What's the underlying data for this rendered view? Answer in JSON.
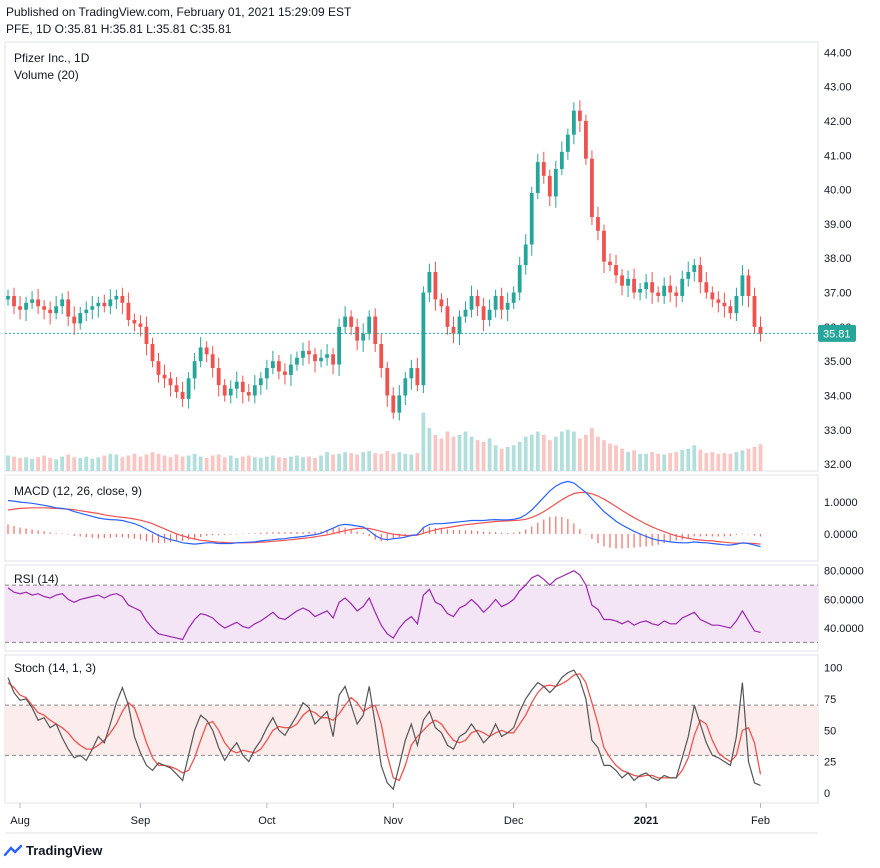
{
  "header": {
    "published": "Published on TradingView.com, February 01, 2021 15:29:09 EST",
    "ohlc": "PFE, 1D O:35.81 H:35.81 L:35.81 C:35.81"
  },
  "footer": {
    "brand": "TradingView"
  },
  "colors": {
    "up": "#26a69a",
    "down": "#ef5350",
    "up_vol": "#b2dfdb",
    "down_vol": "#f8c6c3",
    "macd": "#2962ff",
    "signal": "#ef5350",
    "rsi": "#9c27b0",
    "stoch_k": "#555555",
    "stoch_d": "#ef5350",
    "price_line": "#26a69a"
  },
  "chart_data": {
    "type": "candlestick",
    "title": "Pfizer Inc., 1D",
    "last_price_label": "35.81",
    "x_axis": {
      "tick_labels": [
        "Aug",
        "Sep",
        "Oct",
        "Nov",
        "Dec",
        "2021",
        "Feb"
      ],
      "tick_index": [
        2,
        22,
        43,
        64,
        84,
        106,
        125
      ]
    },
    "price_panel": {
      "legend": [
        "Pfizer Inc., 1D",
        "Volume (20)"
      ],
      "ylim": [
        31.8,
        44.3
      ],
      "ticks": [
        "32.00",
        "33.00",
        "34.00",
        "35.00",
        "36.00",
        "37.00",
        "38.00",
        "39.00",
        "40.00",
        "41.00",
        "42.00",
        "43.00",
        "44.00"
      ],
      "close": [
        36.9,
        36.6,
        36.5,
        36.7,
        36.8,
        36.6,
        36.5,
        36.4,
        36.6,
        36.8,
        36.3,
        36.1,
        36.4,
        36.5,
        36.6,
        36.7,
        36.6,
        36.8,
        36.9,
        36.7,
        36.2,
        36.1,
        36.0,
        35.5,
        35.0,
        34.6,
        34.5,
        34.3,
        34.1,
        33.9,
        34.5,
        35.0,
        35.4,
        35.2,
        34.8,
        34.3,
        34.0,
        34.2,
        34.4,
        34.1,
        34.0,
        34.3,
        34.5,
        34.8,
        35.0,
        34.7,
        34.6,
        34.9,
        35.1,
        35.3,
        35.2,
        35.0,
        35.1,
        35.2,
        34.9,
        36.0,
        36.3,
        36.0,
        35.6,
        35.8,
        36.3,
        35.5,
        34.8,
        34.0,
        33.5,
        34.0,
        34.5,
        34.8,
        34.3,
        37.0,
        37.6,
        36.8,
        36.6,
        36.0,
        35.8,
        36.3,
        36.5,
        36.9,
        36.6,
        36.2,
        36.5,
        36.9,
        36.5,
        36.7,
        37.0,
        37.8,
        38.4,
        39.9,
        40.8,
        40.4,
        39.8,
        40.6,
        41.1,
        41.6,
        42.3,
        42.0,
        40.9,
        39.2,
        38.8,
        37.9,
        37.8,
        37.5,
        37.2,
        37.4,
        37.0,
        37.1,
        37.3,
        37.0,
        36.9,
        37.2,
        37.0,
        36.9,
        37.4,
        37.6,
        37.8,
        37.3,
        37.0,
        36.8,
        36.7,
        36.6,
        36.4,
        36.9,
        37.5,
        36.9,
        36.0,
        35.8
      ],
      "volume": [
        32.25,
        32.22,
        32.18,
        32.2,
        32.15,
        32.2,
        32.25,
        32.18,
        32.14,
        32.22,
        32.28,
        32.2,
        32.18,
        32.22,
        32.15,
        32.2,
        32.25,
        32.3,
        32.28,
        32.2,
        32.25,
        32.3,
        32.22,
        32.28,
        32.35,
        32.3,
        32.25,
        32.2,
        32.28,
        32.22,
        32.25,
        32.3,
        32.22,
        32.18,
        32.25,
        32.28,
        32.2,
        32.25,
        32.18,
        32.22,
        32.25,
        32.2,
        32.18,
        32.22,
        32.25,
        32.2,
        32.18,
        32.22,
        32.25,
        32.2,
        32.22,
        32.18,
        32.25,
        32.35,
        32.28,
        32.3,
        32.35,
        32.32,
        32.28,
        32.35,
        32.38,
        32.32,
        32.3,
        32.38,
        32.3,
        32.35,
        32.3,
        32.28,
        32.32,
        33.5,
        33.05,
        32.85,
        32.75,
        32.95,
        32.8,
        32.85,
        32.95,
        32.8,
        32.7,
        32.65,
        32.75,
        32.55,
        32.45,
        32.5,
        32.55,
        32.65,
        32.8,
        32.85,
        32.95,
        32.85,
        32.7,
        32.8,
        32.95,
        33.0,
        32.95,
        32.75,
        32.85,
        33.05,
        32.8,
        32.7,
        32.6,
        32.55,
        32.45,
        32.35,
        32.4,
        32.3,
        32.3,
        32.35,
        32.3,
        32.28,
        32.32,
        32.35,
        32.42,
        32.45,
        32.55,
        32.42,
        32.32,
        32.35,
        32.3,
        32.32,
        32.3,
        32.35,
        32.4,
        32.45,
        32.5,
        32.58
      ]
    },
    "macd_panel": {
      "legend": "MACD (12, 26, close, 9)",
      "ylim": [
        -0.85,
        1.85
      ],
      "ticks": [
        "0.0000",
        "1.0000"
      ],
      "macd": [
        1.05,
        1.03,
        1.0,
        0.98,
        0.96,
        0.93,
        0.9,
        0.86,
        0.82,
        0.8,
        0.77,
        0.7,
        0.65,
        0.6,
        0.55,
        0.5,
        0.47,
        0.45,
        0.44,
        0.42,
        0.37,
        0.32,
        0.25,
        0.15,
        0.05,
        -0.05,
        -0.12,
        -0.18,
        -0.22,
        -0.28,
        -0.3,
        -0.32,
        -0.3,
        -0.28,
        -0.28,
        -0.3,
        -0.3,
        -0.3,
        -0.28,
        -0.27,
        -0.26,
        -0.25,
        -0.22,
        -0.2,
        -0.18,
        -0.16,
        -0.15,
        -0.12,
        -0.1,
        -0.08,
        -0.05,
        -0.02,
        0.02,
        0.1,
        0.18,
        0.27,
        0.3,
        0.28,
        0.25,
        0.22,
        0.1,
        -0.05,
        -0.15,
        -0.18,
        -0.15,
        -0.13,
        -0.1,
        -0.05,
        -0.02,
        0.2,
        0.3,
        0.32,
        0.32,
        0.34,
        0.36,
        0.38,
        0.4,
        0.42,
        0.42,
        0.42,
        0.44,
        0.45,
        0.44,
        0.44,
        0.46,
        0.5,
        0.6,
        0.75,
        0.95,
        1.15,
        1.35,
        1.5,
        1.6,
        1.65,
        1.6,
        1.45,
        1.3,
        1.1,
        0.9,
        0.7,
        0.55,
        0.4,
        0.28,
        0.18,
        0.08,
        0.0,
        -0.08,
        -0.15,
        -0.2,
        -0.22,
        -0.25,
        -0.27,
        -0.28,
        -0.28,
        -0.25,
        -0.27,
        -0.28,
        -0.3,
        -0.32,
        -0.34,
        -0.35,
        -0.32,
        -0.28,
        -0.3,
        -0.35,
        -0.4
      ],
      "signal": [
        0.75,
        0.78,
        0.8,
        0.81,
        0.82,
        0.82,
        0.82,
        0.81,
        0.8,
        0.79,
        0.78,
        0.76,
        0.73,
        0.7,
        0.67,
        0.64,
        0.6,
        0.57,
        0.54,
        0.52,
        0.5,
        0.47,
        0.43,
        0.38,
        0.32,
        0.24,
        0.16,
        0.08,
        0.0,
        -0.06,
        -0.12,
        -0.16,
        -0.2,
        -0.22,
        -0.24,
        -0.26,
        -0.27,
        -0.28,
        -0.28,
        -0.28,
        -0.28,
        -0.27,
        -0.26,
        -0.25,
        -0.23,
        -0.22,
        -0.2,
        -0.18,
        -0.16,
        -0.14,
        -0.12,
        -0.09,
        -0.06,
        -0.03,
        0.01,
        0.06,
        0.1,
        0.14,
        0.17,
        0.18,
        0.17,
        0.13,
        0.08,
        0.03,
        -0.01,
        -0.03,
        -0.05,
        -0.05,
        -0.04,
        0.02,
        0.08,
        0.13,
        0.17,
        0.2,
        0.23,
        0.26,
        0.29,
        0.31,
        0.33,
        0.35,
        0.37,
        0.39,
        0.4,
        0.41,
        0.42,
        0.43,
        0.46,
        0.52,
        0.6,
        0.7,
        0.82,
        0.95,
        1.07,
        1.18,
        1.27,
        1.3,
        1.3,
        1.26,
        1.19,
        1.09,
        0.98,
        0.86,
        0.74,
        0.62,
        0.51,
        0.41,
        0.31,
        0.22,
        0.14,
        0.07,
        0.0,
        -0.06,
        -0.1,
        -0.14,
        -0.17,
        -0.19,
        -0.21,
        -0.22,
        -0.24,
        -0.26,
        -0.28,
        -0.29,
        -0.29,
        -0.29,
        -0.3,
        -0.32
      ],
      "histogram_shown": true
    },
    "rsi_panel": {
      "legend": "RSI (14)",
      "ylim": [
        24,
        84
      ],
      "ticks": [
        "40.0000",
        "60.0000",
        "80.0000"
      ],
      "band": [
        30,
        70
      ],
      "rsi": [
        68,
        65,
        64,
        65,
        63,
        64,
        62,
        61,
        63,
        64,
        60,
        58,
        60,
        61,
        62,
        63,
        61,
        63,
        64,
        62,
        56,
        54,
        52,
        45,
        40,
        36,
        35,
        34,
        33,
        32,
        40,
        46,
        50,
        49,
        47,
        43,
        40,
        42,
        44,
        41,
        40,
        43,
        45,
        48,
        51,
        47,
        46,
        49,
        52,
        54,
        52,
        48,
        50,
        52,
        47,
        58,
        61,
        57,
        52,
        55,
        61,
        51,
        42,
        36,
        33,
        40,
        45,
        48,
        43,
        63,
        67,
        58,
        56,
        50,
        48,
        54,
        56,
        60,
        56,
        51,
        55,
        60,
        55,
        57,
        60,
        66,
        70,
        75,
        77,
        74,
        70,
        74,
        76,
        78,
        80,
        77,
        70,
        56,
        53,
        46,
        46,
        45,
        43,
        45,
        42,
        44,
        45,
        43,
        42,
        45,
        43,
        43,
        47,
        49,
        51,
        46,
        44,
        42,
        42,
        41,
        40,
        45,
        52,
        45,
        38,
        37
      ]
    },
    "stoch_panel": {
      "legend": "Stoch (14, 1, 3)",
      "ylim": [
        -8,
        110
      ],
      "ticks": [
        "0",
        "25",
        "50",
        "75",
        "100"
      ],
      "band": [
        30,
        70
      ],
      "k": [
        92,
        80,
        74,
        75,
        68,
        58,
        60,
        52,
        55,
        44,
        35,
        28,
        30,
        26,
        35,
        45,
        40,
        55,
        72,
        84,
        70,
        45,
        32,
        22,
        18,
        24,
        22,
        20,
        15,
        10,
        30,
        50,
        62,
        58,
        50,
        36,
        26,
        34,
        40,
        30,
        25,
        35,
        42,
        52,
        60,
        50,
        46,
        54,
        62,
        72,
        68,
        55,
        60,
        65,
        45,
        78,
        85,
        70,
        55,
        62,
        85,
        55,
        22,
        8,
        3,
        22,
        42,
        55,
        38,
        58,
        65,
        52,
        48,
        38,
        35,
        45,
        48,
        55,
        48,
        40,
        45,
        55,
        45,
        48,
        52,
        65,
        75,
        82,
        88,
        85,
        80,
        85,
        92,
        96,
        98,
        90,
        75,
        42,
        36,
        22,
        22,
        18,
        12,
        16,
        10,
        14,
        16,
        12,
        10,
        14,
        12,
        12,
        28,
        45,
        70,
        55,
        40,
        30,
        28,
        25,
        22,
        45,
        88,
        25,
        8,
        6
      ],
      "d": [
        88,
        84,
        78,
        76,
        70,
        64,
        62,
        58,
        55,
        52,
        48,
        42,
        38,
        35,
        35,
        38,
        42,
        48,
        55,
        65,
        72,
        68,
        55,
        40,
        28,
        22,
        22,
        21,
        19,
        16,
        18,
        28,
        42,
        55,
        57,
        50,
        40,
        34,
        32,
        34,
        33,
        32,
        35,
        42,
        50,
        53,
        52,
        52,
        55,
        62,
        66,
        64,
        60,
        60,
        58,
        63,
        70,
        76,
        72,
        65,
        68,
        70,
        55,
        30,
        12,
        10,
        22,
        38,
        45,
        50,
        55,
        58,
        55,
        48,
        42,
        40,
        42,
        48,
        50,
        48,
        45,
        48,
        50,
        48,
        48,
        55,
        62,
        72,
        80,
        85,
        86,
        85,
        87,
        90,
        94,
        95,
        88,
        72,
        55,
        36,
        28,
        22,
        18,
        16,
        14,
        13,
        14,
        14,
        12,
        12,
        12,
        12,
        18,
        28,
        46,
        58,
        55,
        42,
        32,
        28,
        25,
        30,
        50,
        52,
        40,
        15
      ]
    }
  }
}
